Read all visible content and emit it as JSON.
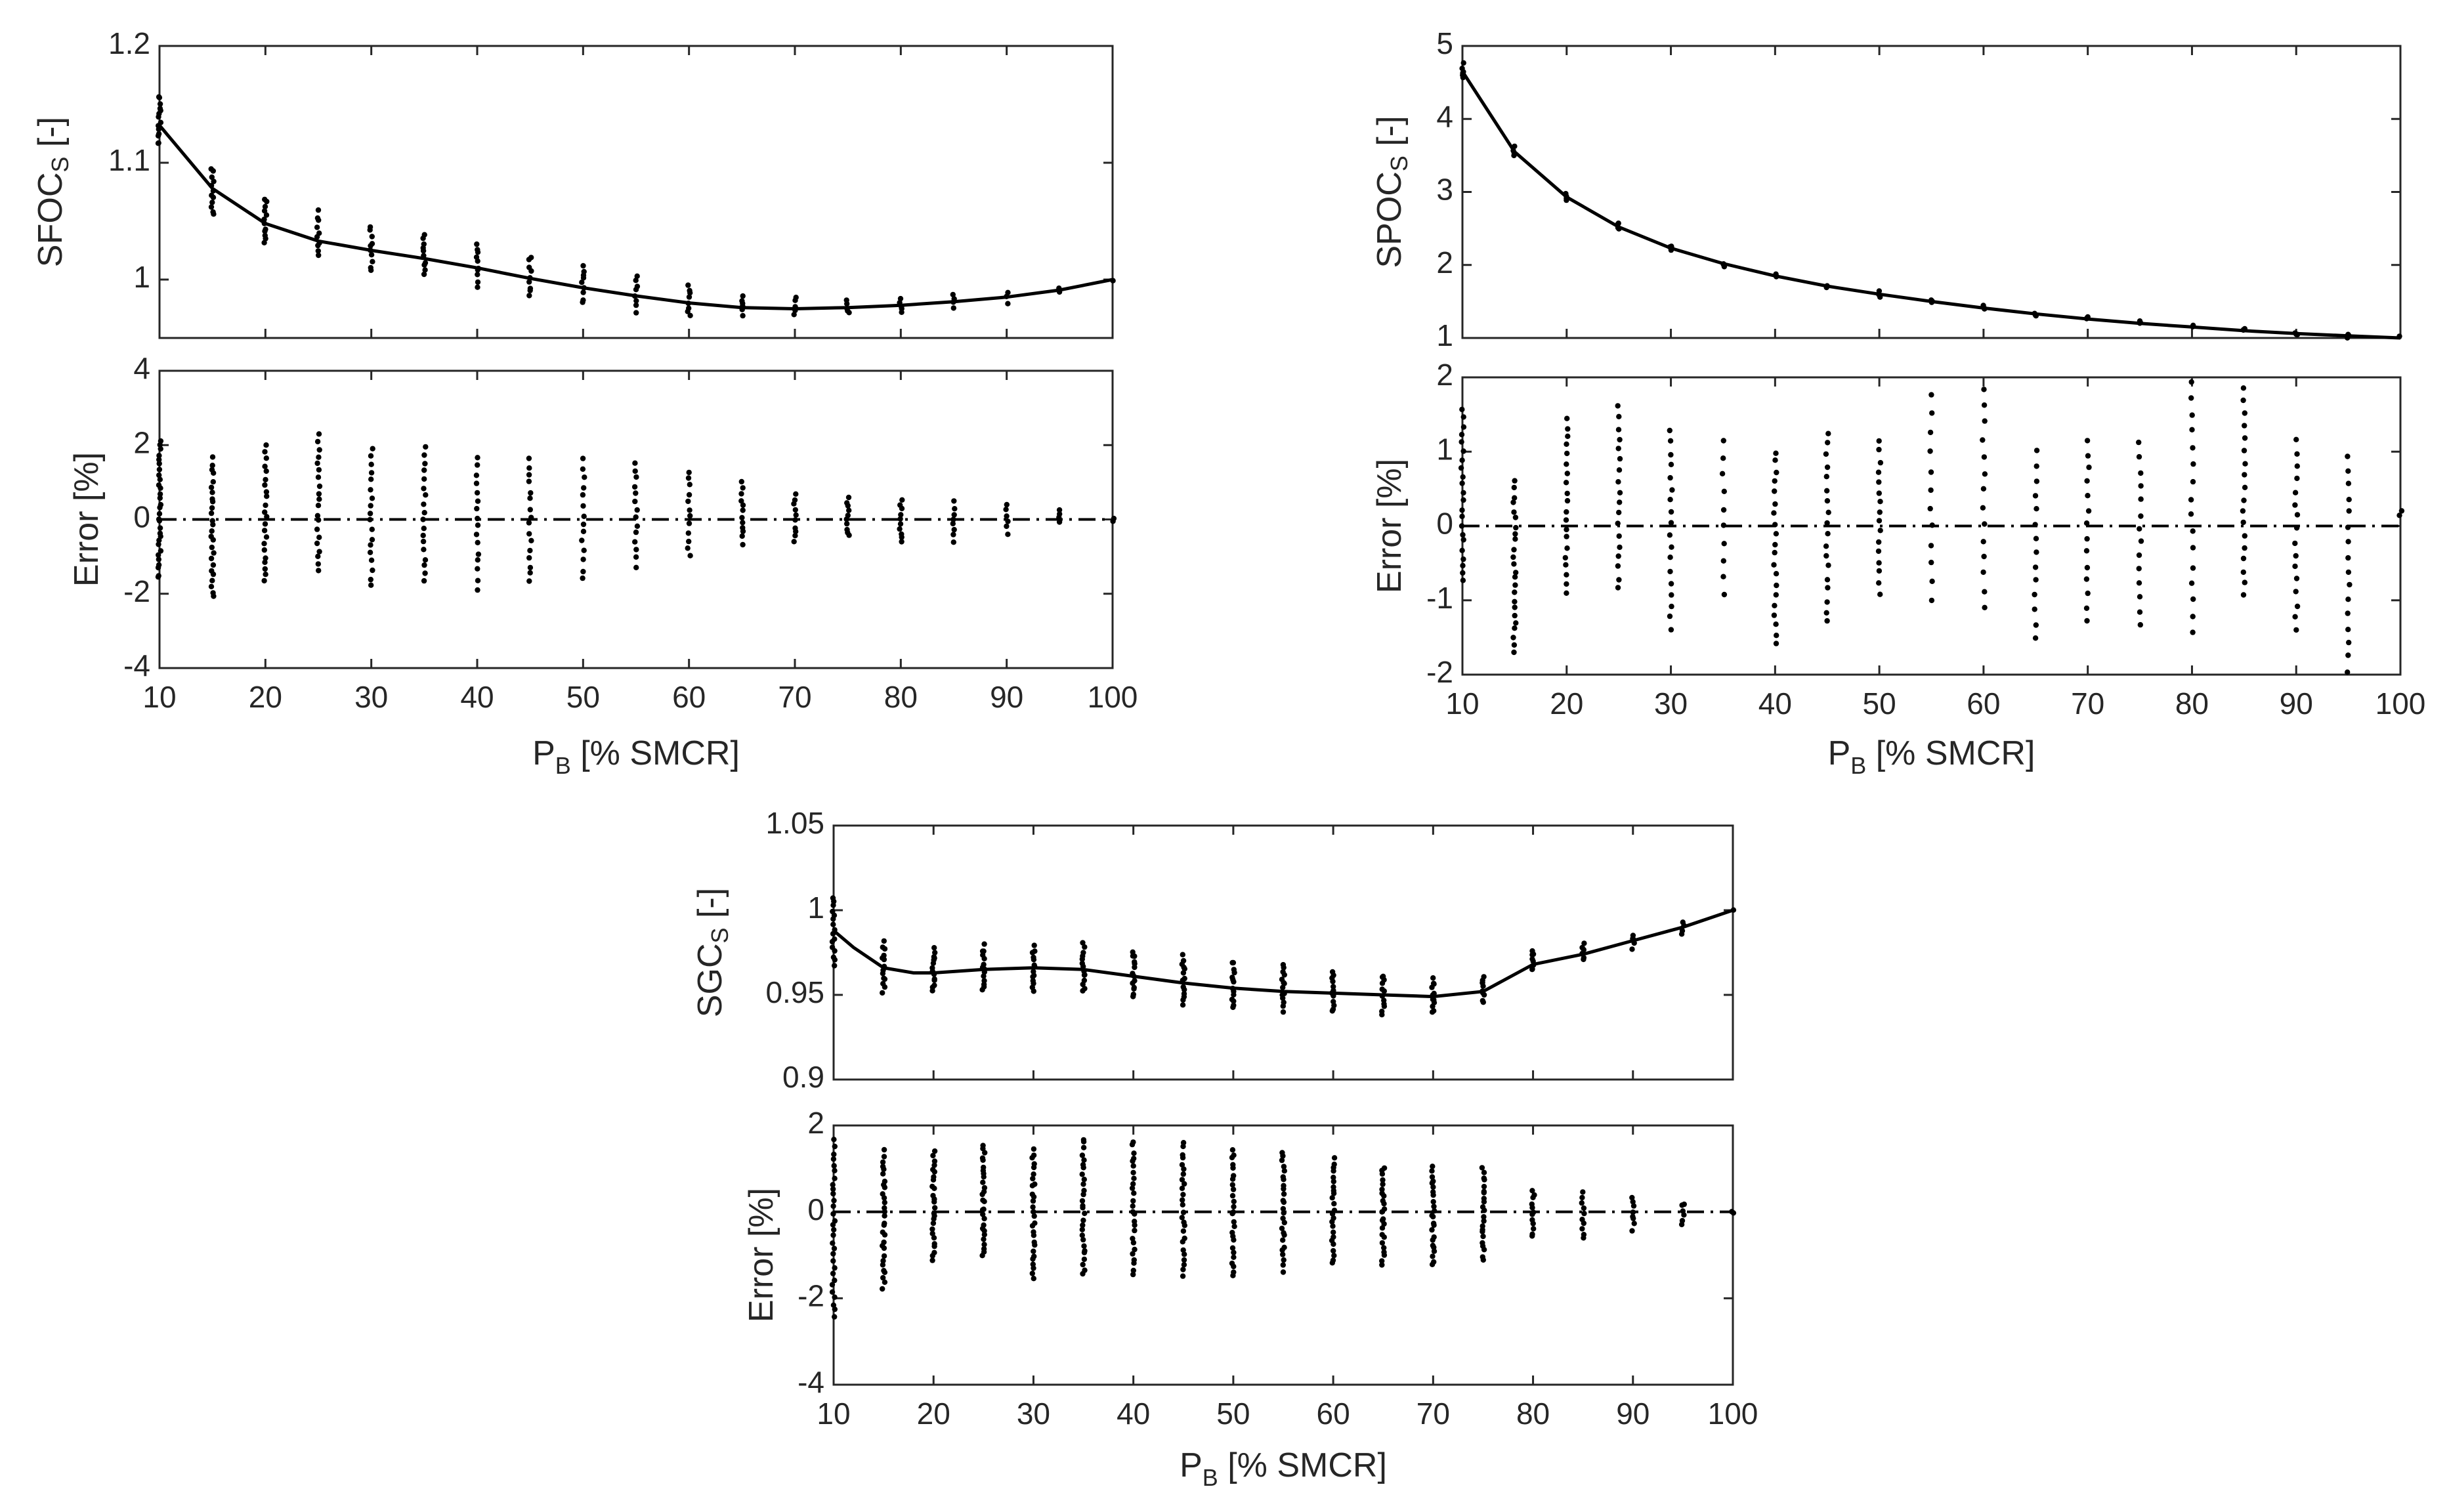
{
  "chart_data": [
    {
      "id": "sfoc",
      "type": "scatter",
      "ylabel_main": "SFOC",
      "ylabel_sub": "S",
      "ylabel_unit": " [-]",
      "xlabel_main": "P",
      "xlabel_sub": "B",
      "xlabel_unit": " [% SMCR]",
      "error_ylabel": "Error [%]",
      "xlim": [
        10,
        100
      ],
      "xticks": [
        10,
        20,
        30,
        40,
        50,
        60,
        70,
        80,
        90,
        100
      ],
      "xtick_labels": [
        "10",
        "20",
        "30",
        "40",
        "50",
        "60",
        "70",
        "80",
        "90",
        "100"
      ],
      "top": {
        "ylim": [
          0.95,
          1.2
        ],
        "yticks": [
          1.0,
          1.1,
          1.2
        ],
        "ytick_labels": [
          "1",
          "1.1",
          "1.2"
        ],
        "fit_curve": {
          "x": [
            10,
            15,
            20,
            25,
            30,
            35,
            40,
            45,
            50,
            55,
            60,
            65,
            70,
            75,
            80,
            85,
            90,
            95,
            100
          ],
          "y": [
            1.132,
            1.078,
            1.048,
            1.033,
            1.025,
            1.018,
            1.01,
            1.001,
            0.993,
            0.986,
            0.98,
            0.976,
            0.975,
            0.976,
            0.978,
            0.981,
            0.985,
            0.991,
            1.0
          ]
        },
        "scatter_ranges": {
          "x": [
            10,
            15,
            20,
            25,
            30,
            35,
            40,
            45,
            50,
            55,
            60,
            65,
            70,
            75,
            80,
            85,
            90,
            95,
            100
          ],
          "ymin": [
            1.115,
            1.055,
            1.03,
            1.02,
            1.007,
            1.003,
            0.995,
            0.985,
            0.98,
            0.973,
            0.97,
            0.97,
            0.97,
            0.971,
            0.972,
            0.976,
            0.981,
            0.99,
            0.999
          ],
          "ymax": [
            1.158,
            1.095,
            1.07,
            1.058,
            1.045,
            1.04,
            1.03,
            1.02,
            1.012,
            1.003,
            0.995,
            0.986,
            0.984,
            0.982,
            0.984,
            0.986,
            0.989,
            0.993,
            1.001
          ],
          "count": [
            14,
            12,
            12,
            10,
            10,
            10,
            10,
            9,
            9,
            8,
            8,
            7,
            6,
            5,
            5,
            4,
            3,
            2,
            1
          ]
        }
      },
      "error": {
        "ylim": [
          -4,
          4
        ],
        "yticks": [
          -4,
          -2,
          0,
          2,
          4
        ],
        "ytick_labels": [
          "-4",
          "-2",
          "0",
          "2",
          "4"
        ],
        "reference_y": 0,
        "scatter_ranges": {
          "x": [
            10,
            15,
            20,
            25,
            30,
            35,
            40,
            45,
            50,
            55,
            60,
            65,
            70,
            75,
            80,
            85,
            90,
            95,
            100
          ],
          "ymin": [
            -1.6,
            -2.1,
            -1.7,
            -1.4,
            -1.8,
            -1.7,
            -1.85,
            -1.7,
            -1.6,
            -1.25,
            -0.95,
            -0.65,
            -0.6,
            -0.45,
            -0.6,
            -0.6,
            -0.35,
            -0.05,
            -0.02
          ],
          "ymax": [
            2.1,
            1.65,
            2.0,
            2.25,
            1.9,
            1.95,
            1.7,
            1.65,
            1.6,
            1.55,
            1.3,
            1.0,
            0.65,
            0.55,
            0.5,
            0.45,
            0.4,
            0.3,
            0.02
          ],
          "count": [
            30,
            26,
            22,
            20,
            18,
            18,
            16,
            16,
            14,
            14,
            12,
            12,
            10,
            10,
            10,
            8,
            6,
            4,
            2
          ]
        }
      }
    },
    {
      "id": "spoc",
      "type": "scatter",
      "ylabel_main": "SPOC",
      "ylabel_sub": "S",
      "ylabel_unit": " [-]",
      "xlabel_main": "P",
      "xlabel_sub": "B",
      "xlabel_unit": " [% SMCR]",
      "error_ylabel": "Error [%]",
      "xlim": [
        10,
        100
      ],
      "xticks": [
        10,
        20,
        30,
        40,
        50,
        60,
        70,
        80,
        90,
        100
      ],
      "xtick_labels": [
        "10",
        "20",
        "30",
        "40",
        "50",
        "60",
        "70",
        "80",
        "90",
        "100"
      ],
      "top": {
        "ylim": [
          1,
          5
        ],
        "yticks": [
          1,
          2,
          3,
          4,
          5
        ],
        "ytick_labels": [
          "1",
          "2",
          "3",
          "4",
          "5"
        ],
        "fit_curve": {
          "x": [
            10,
            15,
            20,
            25,
            30,
            35,
            40,
            45,
            50,
            55,
            60,
            65,
            70,
            75,
            80,
            85,
            90,
            95,
            100
          ],
          "y": [
            4.65,
            3.55,
            2.93,
            2.52,
            2.23,
            2.02,
            1.85,
            1.71,
            1.6,
            1.5,
            1.41,
            1.33,
            1.26,
            1.2,
            1.15,
            1.1,
            1.06,
            1.03,
            1.0
          ]
        },
        "scatter_ranges": {
          "x": [
            10,
            15,
            20,
            25,
            30,
            35,
            40,
            45,
            50,
            55,
            60,
            65,
            70,
            75,
            80,
            85,
            90,
            95,
            100
          ],
          "ymin": [
            4.55,
            3.5,
            2.89,
            2.49,
            2.2,
            2.0,
            1.83,
            1.69,
            1.58,
            1.49,
            1.4,
            1.32,
            1.25,
            1.19,
            1.14,
            1.09,
            1.05,
            1.02,
            0.99
          ],
          "ymax": [
            4.75,
            3.6,
            2.97,
            2.56,
            2.26,
            2.04,
            1.87,
            1.73,
            1.62,
            1.51,
            1.42,
            1.34,
            1.27,
            1.21,
            1.16,
            1.11,
            1.07,
            1.04,
            1.01
          ],
          "count": [
            6,
            4,
            4,
            4,
            4,
            3,
            3,
            3,
            3,
            3,
            3,
            3,
            3,
            3,
            3,
            3,
            3,
            3,
            1
          ]
        }
      },
      "error": {
        "ylim": [
          -2,
          2
        ],
        "yticks": [
          -2,
          -1,
          0,
          1,
          2
        ],
        "ytick_labels": [
          "-2",
          "-1",
          "0",
          "1",
          "2"
        ],
        "reference_y": 0,
        "scatter_ranges": {
          "x": [
            10,
            15,
            20,
            25,
            30,
            35,
            40,
            45,
            50,
            55,
            60,
            65,
            70,
            75,
            80,
            85,
            90,
            95,
            100
          ],
          "ymin": [
            -0.75,
            -1.7,
            -0.9,
            -0.85,
            -1.4,
            -0.9,
            -1.6,
            -1.3,
            -0.9,
            -1.0,
            -1.1,
            -1.5,
            -1.3,
            -1.35,
            -1.45,
            -0.95,
            -1.4,
            -1.95,
            0.12
          ],
          "ymax": [
            1.55,
            0.6,
            1.45,
            1.6,
            1.3,
            1.15,
            1.0,
            1.25,
            1.15,
            1.75,
            1.85,
            1.0,
            1.15,
            1.1,
            1.95,
            1.85,
            1.15,
            0.95,
            0.2
          ],
          "count": [
            22,
            24,
            20,
            18,
            18,
            10,
            20,
            18,
            16,
            12,
            14,
            14,
            14,
            14,
            16,
            18,
            16,
            16,
            2
          ]
        }
      }
    },
    {
      "id": "sgc",
      "type": "scatter",
      "ylabel_main": "SGC",
      "ylabel_sub": "S",
      "ylabel_unit": " [-]",
      "xlabel_main": "P",
      "xlabel_sub": "B",
      "xlabel_unit": " [% SMCR]",
      "error_ylabel": "Error [%]",
      "xlim": [
        10,
        100
      ],
      "xticks": [
        10,
        20,
        30,
        40,
        50,
        60,
        70,
        80,
        90,
        100
      ],
      "xtick_labels": [
        "10",
        "20",
        "30",
        "40",
        "50",
        "60",
        "70",
        "80",
        "90",
        "100"
      ],
      "top": {
        "ylim": [
          0.9,
          1.05
        ],
        "yticks": [
          0.9,
          0.95,
          1.0,
          1.05
        ],
        "ytick_labels": [
          "0.9",
          "0.95",
          "1",
          "1.05"
        ],
        "fit_curve": {
          "x": [
            10,
            12,
            15,
            18,
            20,
            25,
            30,
            35,
            40,
            45,
            50,
            55,
            60,
            65,
            70,
            75,
            80,
            85,
            90,
            95,
            100
          ],
          "y": [
            0.988,
            0.978,
            0.966,
            0.963,
            0.963,
            0.965,
            0.966,
            0.965,
            0.961,
            0.957,
            0.954,
            0.952,
            0.951,
            0.95,
            0.949,
            0.952,
            0.968,
            0.974,
            0.982,
            0.99,
            1.0
          ]
        },
        "scatter_ranges": {
          "x": [
            10,
            15,
            20,
            25,
            30,
            35,
            40,
            45,
            50,
            55,
            60,
            65,
            70,
            75,
            80,
            85,
            90,
            95,
            100
          ],
          "ymin": [
            0.968,
            0.952,
            0.953,
            0.952,
            0.952,
            0.952,
            0.949,
            0.945,
            0.942,
            0.941,
            0.94,
            0.939,
            0.939,
            0.946,
            0.964,
            0.971,
            0.978,
            0.987,
            0.999
          ],
          "ymax": [
            1.007,
            0.981,
            0.977,
            0.979,
            0.979,
            0.98,
            0.976,
            0.973,
            0.97,
            0.968,
            0.964,
            0.962,
            0.959,
            0.961,
            0.976,
            0.981,
            0.986,
            0.993,
            1.001
          ],
          "count": [
            16,
            14,
            14,
            14,
            14,
            14,
            14,
            14,
            14,
            14,
            12,
            12,
            12,
            10,
            8,
            6,
            5,
            4,
            1
          ]
        }
      },
      "error": {
        "ylim": [
          -4,
          2
        ],
        "yticks": [
          -4,
          -2,
          0,
          2
        ],
        "ytick_labels": [
          "-4",
          "-2",
          "0",
          "2"
        ],
        "reference_y": 0,
        "scatter_ranges": {
          "x": [
            10,
            15,
            20,
            25,
            30,
            35,
            40,
            45,
            50,
            55,
            60,
            65,
            70,
            75,
            80,
            85,
            90,
            95,
            100
          ],
          "ymin": [
            -2.4,
            -1.75,
            -1.1,
            -1.05,
            -1.55,
            -1.45,
            -1.45,
            -1.45,
            -1.5,
            -1.35,
            -1.2,
            -1.2,
            -1.25,
            -1.1,
            -0.6,
            -0.6,
            -0.4,
            -0.25,
            -0.03
          ],
          "ymax": [
            1.65,
            1.4,
            1.4,
            1.55,
            1.45,
            1.7,
            1.65,
            1.6,
            1.45,
            1.4,
            1.25,
            1.05,
            1.05,
            1.0,
            0.5,
            0.45,
            0.35,
            0.2,
            0.03
          ],
          "count": [
            30,
            30,
            26,
            28,
            28,
            28,
            26,
            26,
            26,
            26,
            24,
            24,
            24,
            22,
            12,
            10,
            8,
            6,
            2
          ]
        }
      }
    }
  ]
}
